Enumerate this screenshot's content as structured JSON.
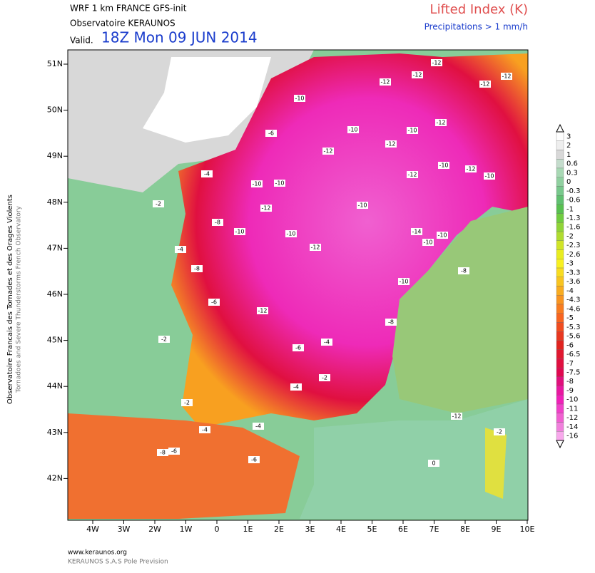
{
  "header": {
    "model": "WRF 1 km FRANCE  GFS-init",
    "source": "Observatoire KERAUNOS",
    "valid_label": "Valid.",
    "valid_time": "18Z Mon 09 JUN 2014",
    "title": "Lifted Index (K)",
    "subtitle": "Precipitations > 1 mm/h"
  },
  "axes": {
    "lat_labels": [
      "51N",
      "50N",
      "49N",
      "48N",
      "47N",
      "46N",
      "45N",
      "44N",
      "43N",
      "42N"
    ],
    "lon_labels": [
      "4W",
      "3W",
      "2W",
      "1W",
      "0",
      "1E",
      "2E",
      "3E",
      "4E",
      "5E",
      "6E",
      "7E",
      "8E",
      "9E",
      "10E"
    ]
  },
  "legend": {
    "labels": [
      3,
      2,
      1,
      0.6,
      0.3,
      0,
      -0.3,
      -0.6,
      -1,
      -1.3,
      -1.6,
      -2,
      -2.3,
      -2.6,
      -3,
      -3.3,
      -3.6,
      -4,
      -4.3,
      -4.6,
      -5,
      -5.3,
      -5.6,
      -6,
      -6.5,
      -7,
      -7.5,
      -8,
      -9,
      -10,
      -11,
      -12,
      -14,
      -16
    ],
    "colors": [
      "#ffffff",
      "#eeeeee",
      "#d8d8d8",
      "#c4dccc",
      "#a8d8b4",
      "#90d0a0",
      "#78c88c",
      "#60c070",
      "#58c050",
      "#70cc40",
      "#90d438",
      "#b0dc30",
      "#d0e428",
      "#e8ec20",
      "#f8f020",
      "#f8dc20",
      "#f8c420",
      "#f8ac20",
      "#f89420",
      "#f87c20",
      "#f86420",
      "#f04c20",
      "#e83820",
      "#e02420",
      "#e01830",
      "#e01040",
      "#e00850",
      "#e0107c",
      "#e818a0",
      "#f020b8",
      "#f040c8",
      "#f060d0",
      "#f080dc",
      "#f8a8ec"
    ]
  },
  "side_text": {
    "line1": "Observatoire Francais des Tornades et des Orages Violents",
    "line2": "Tornadoes and Severe Thunderstorms French Observatory"
  },
  "footer": {
    "url": "www.keraunos.org",
    "company": "KERAUNOS S.A.S Pole Prevision"
  },
  "map_labels": [
    -12,
    -12,
    -10,
    -12,
    -10,
    -12,
    -12,
    -10,
    -10,
    -10,
    -12,
    -10,
    -6,
    -4,
    -2,
    -8,
    -10,
    -12,
    -12,
    -10,
    -12,
    -10,
    -12,
    -14,
    -10,
    -10,
    -12,
    -10,
    -8,
    -6,
    -4,
    -2,
    -6,
    -4,
    -8,
    -10,
    -12,
    -2,
    -4,
    -6,
    -8,
    -12,
    -2,
    -4,
    -6,
    -2,
    0,
    -4,
    -12,
    -8
  ]
}
